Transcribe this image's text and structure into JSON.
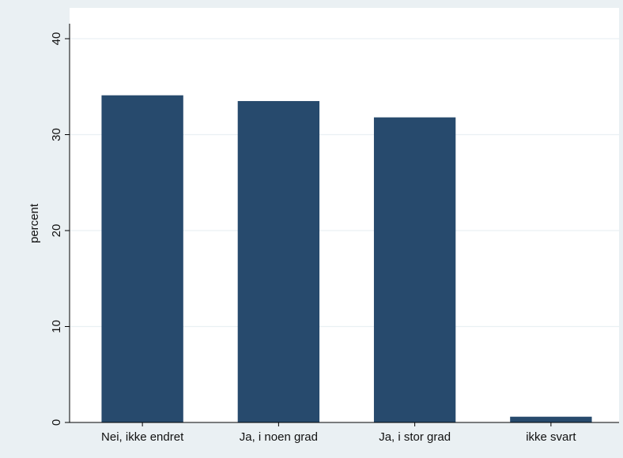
{
  "chart_data": {
    "type": "bar",
    "categories": [
      "Nei, ikke endret",
      "Ja, i noen grad",
      "Ja, i stor grad",
      "ikke svart"
    ],
    "values": [
      34.1,
      33.5,
      31.8,
      0.6
    ],
    "title": "",
    "xlabel": "",
    "ylabel": "percent",
    "ylim": [
      0,
      40
    ],
    "yticks": [
      "0",
      "10",
      "20",
      "30",
      "40"
    ],
    "grid": true,
    "legend": "none",
    "colors": {
      "bar": "#274a6d",
      "plot_background": "#ffffff",
      "outer_background": "#eaf0f3",
      "grid": "#eaf0f3",
      "axis": "#000000"
    }
  }
}
